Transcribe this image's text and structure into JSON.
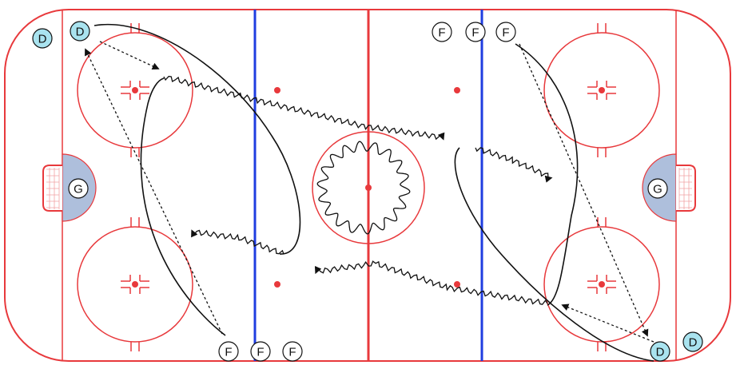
{
  "diagram": {
    "players": {
      "defense_label": "D",
      "forward_label": "F",
      "goalie_label": "G"
    },
    "colors": {
      "boards": "#e8393c",
      "center_line": "#e8393c",
      "blue_line": "#1f3de0",
      "faceoff": "#e8393c",
      "dot": "#e8393c",
      "crease_fill": "#aebfdc",
      "defense_fill": "#a9e3ef",
      "forward_fill": "#ffffff",
      "goalie_fill": "#ffffff",
      "path": "#111111"
    }
  }
}
